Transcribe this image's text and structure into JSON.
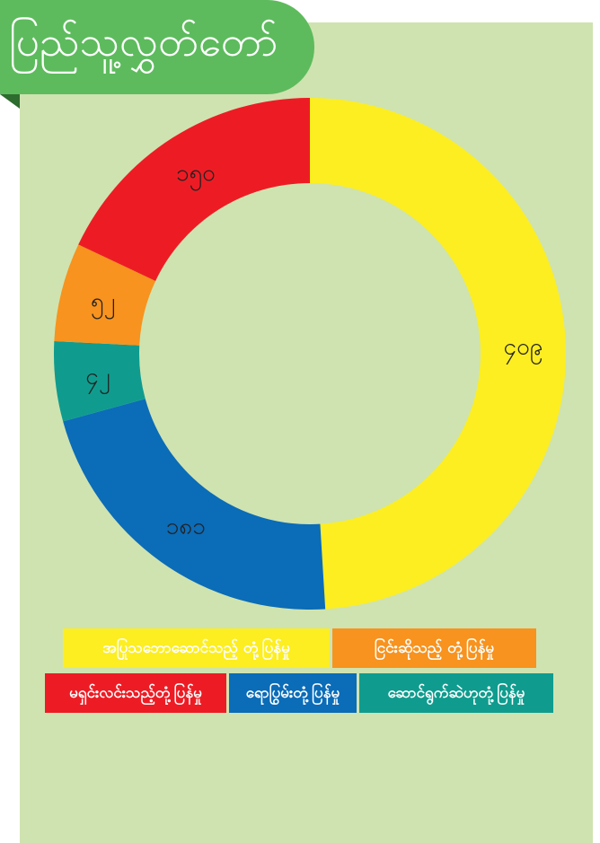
{
  "chart_data": {
    "type": "donut",
    "title": "ပြည်သူ့လွှတ်တော်",
    "categories": [
      "အပြုသဘောဆောင်သည့် တုံ့ပြန်မှု",
      "ရောပြွမ်းတုံ့ပြန်မှု",
      "ဆောင်ရွက်ဆဲဟုတုံ့ပြန်မှု",
      "ငြင်းဆိုသည့် တုံ့ပြန်မှု",
      "မရှင်းလင်းသည့်တုံ့ပြန်မှု"
    ],
    "values": [
      409,
      181,
      42,
      52,
      150
    ],
    "value_labels": [
      "၄၀၉",
      "၁၈၁",
      "၄၂",
      "၅၂",
      "၁၅၀"
    ],
    "colors": [
      "#fcee21",
      "#0b6cb8",
      "#0f9c8e",
      "#f7931e",
      "#ed1c24"
    ]
  }
}
